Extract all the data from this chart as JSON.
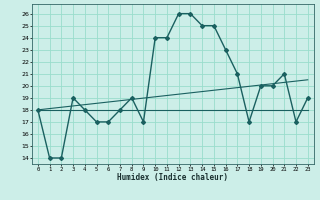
{
  "title": "",
  "xlabel": "Humidex (Indice chaleur)",
  "ylabel": "",
  "bg_color": "#cceee8",
  "grid_color": "#99ddcc",
  "line_color": "#1a6060",
  "xlim": [
    -0.5,
    23.5
  ],
  "ylim": [
    13.5,
    26.8
  ],
  "xticks": [
    0,
    1,
    2,
    3,
    4,
    5,
    6,
    7,
    8,
    9,
    10,
    11,
    12,
    13,
    14,
    15,
    16,
    17,
    18,
    19,
    20,
    21,
    22,
    23
  ],
  "yticks": [
    14,
    15,
    16,
    17,
    18,
    19,
    20,
    21,
    22,
    23,
    24,
    25,
    26
  ],
  "lines": [
    {
      "x": [
        0,
        1,
        2,
        3,
        4,
        5,
        6,
        7,
        8,
        9,
        10,
        11,
        12,
        13,
        14,
        15,
        16,
        17,
        18,
        19,
        20,
        21,
        22,
        23
      ],
      "y": [
        18,
        14,
        14,
        19,
        18,
        17,
        17,
        18,
        19,
        17,
        24,
        24,
        26,
        26,
        25,
        25,
        23,
        21,
        17,
        20,
        20,
        21,
        17,
        19
      ],
      "marker": "D",
      "markersize": 2.0,
      "linewidth": 1.0
    },
    {
      "x": [
        0,
        23
      ],
      "y": [
        18,
        18
      ],
      "marker": null,
      "markersize": 0,
      "linewidth": 0.8
    },
    {
      "x": [
        0,
        23
      ],
      "y": [
        18,
        20.5
      ],
      "marker": null,
      "markersize": 0,
      "linewidth": 0.8
    }
  ]
}
